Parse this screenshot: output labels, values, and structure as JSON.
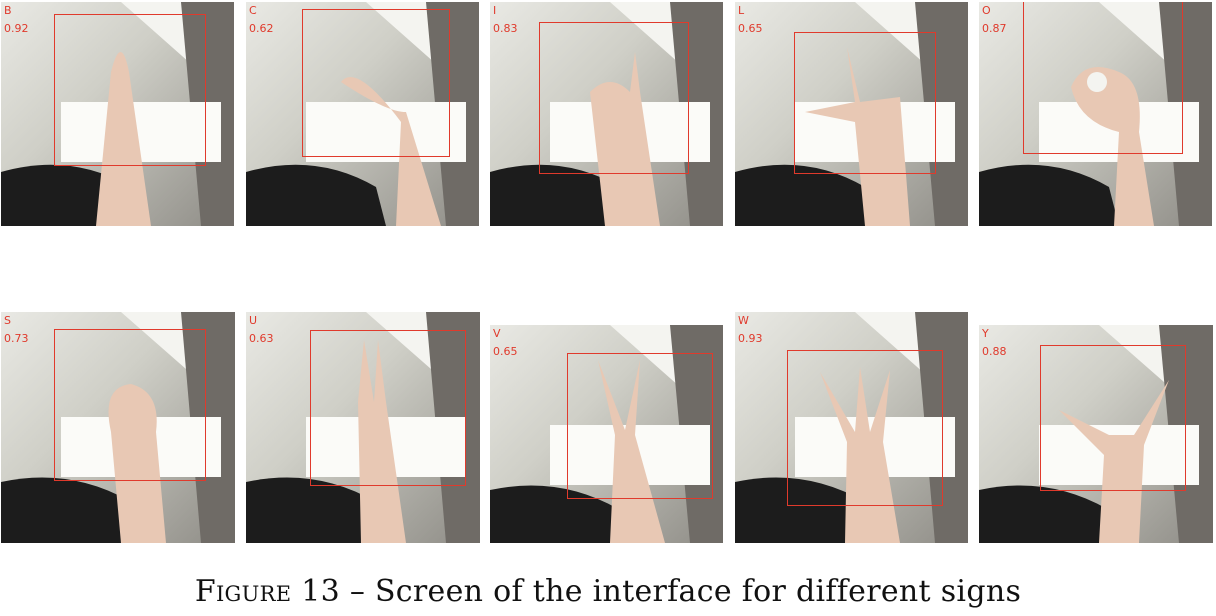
{
  "panels": [
    {
      "letter": "B",
      "score": "0.92"
    },
    {
      "letter": "C",
      "score": "0.62"
    },
    {
      "letter": "I",
      "score": "0.83"
    },
    {
      "letter": "L",
      "score": "0.65"
    },
    {
      "letter": "O",
      "score": "0.87"
    },
    {
      "letter": "S",
      "score": "0.73"
    },
    {
      "letter": "U",
      "score": "0.63"
    },
    {
      "letter": "V",
      "score": "0.65"
    },
    {
      "letter": "W",
      "score": "0.93"
    },
    {
      "letter": "Y",
      "score": "0.88"
    }
  ],
  "caption": {
    "figure_label": "Figure 13",
    "text": " – Screen of the interface for different signs"
  },
  "colors": {
    "box": "#e03a2c",
    "skin": "#e8c8b4",
    "shirt": "#1c1c1c"
  }
}
